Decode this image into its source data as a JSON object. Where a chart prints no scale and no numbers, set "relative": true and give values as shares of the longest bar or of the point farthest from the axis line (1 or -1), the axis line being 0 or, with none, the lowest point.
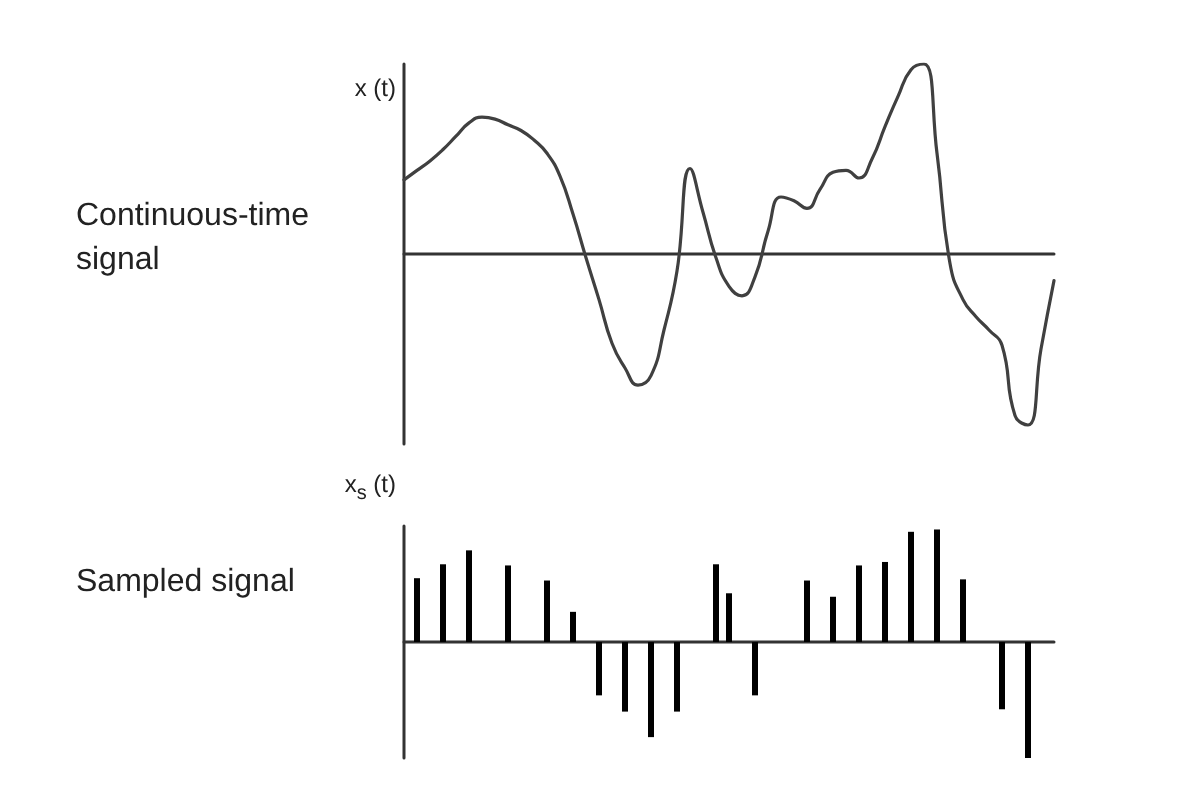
{
  "chart_data": [
    {
      "type": "line",
      "title": "Continuous-time signal",
      "ylabel": "x (t)",
      "relative": true,
      "marker": "none",
      "color": "#404040",
      "categories": [
        null,
        null,
        null,
        null,
        null,
        null,
        null,
        null,
        null,
        null,
        null,
        null,
        null,
        null,
        null,
        null,
        null,
        null,
        null,
        null,
        null,
        null,
        null,
        null,
        null,
        null,
        null,
        null,
        null,
        null,
        null,
        null,
        null,
        null,
        null,
        null,
        null,
        null,
        null,
        null,
        null,
        null,
        null,
        null,
        null,
        null,
        null,
        null,
        null,
        null,
        null
      ],
      "values": [
        0.39,
        0.44,
        0.49,
        0.55,
        0.62,
        0.69,
        0.72,
        0.71,
        0.68,
        0.65,
        0.6,
        0.53,
        0.41,
        0.21,
        -0.02,
        -0.24,
        -0.47,
        -0.6,
        -0.69,
        -0.64,
        -0.4,
        -0.09,
        0.45,
        0.22,
        -0.02,
        -0.17,
        -0.22,
        -0.12,
        0.12,
        0.3,
        0.28,
        0.24,
        0.34,
        0.43,
        0.44,
        0.4,
        0.5,
        0.67,
        0.83,
        0.97,
        1,
        0.53,
        -0.05,
        -0.24,
        -0.33,
        -0.4,
        -0.48,
        -0.85,
        -0.9,
        -0.5,
        -0.14
      ]
    },
    {
      "type": "bar",
      "title": "Sampled signal",
      "ylabel": "x$_{s}$ (t)",
      "relative": true,
      "color": "#000000",
      "categories": [
        null,
        null,
        null,
        null,
        null,
        null,
        null,
        null,
        null,
        null,
        null,
        null,
        null,
        null,
        null,
        null,
        null,
        null,
        null,
        null,
        null,
        null,
        null,
        null,
        null,
        null,
        null,
        null,
        null,
        null,
        null,
        null,
        null,
        null,
        null,
        null,
        null,
        null,
        null,
        null,
        null,
        null,
        null,
        null,
        null,
        null,
        null,
        null,
        null,
        null,
        null
      ],
      "values": [
        null,
        0.55,
        null,
        0.67,
        null,
        0.79,
        null,
        null,
        0.66,
        null,
        null,
        0.53,
        null,
        0.26,
        null,
        -0.46,
        null,
        -0.6,
        null,
        -0.82,
        null,
        -0.6,
        null,
        null,
        0.67,
        0.42,
        null,
        -0.46,
        null,
        null,
        null,
        0.53,
        null,
        0.39,
        null,
        0.66,
        null,
        0.69,
        null,
        0.95,
        null,
        0.97,
        null,
        0.54,
        null,
        null,
        -0.58,
        null,
        -1,
        null,
        null
      ]
    }
  ]
}
